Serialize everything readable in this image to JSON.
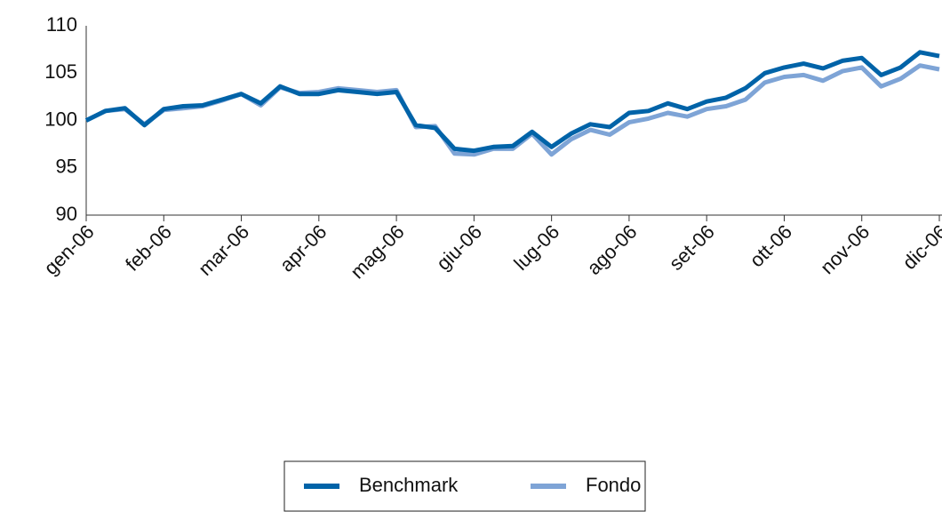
{
  "chart_data": {
    "type": "line",
    "categories": [
      "gen-06",
      null,
      null,
      null,
      "feb-06",
      null,
      null,
      null,
      "mar-06",
      null,
      null,
      null,
      "apr-06",
      null,
      null,
      null,
      "mag-06",
      null,
      null,
      null,
      "giu-06",
      null,
      null,
      null,
      "lug-06",
      null,
      null,
      null,
      "ago-06",
      null,
      null,
      null,
      "set-06",
      null,
      null,
      null,
      "ott-06",
      null,
      null,
      null,
      "nov-06",
      null,
      null,
      null,
      "dic-06"
    ],
    "series": [
      {
        "name": "Benchmark",
        "color": "#0063a8",
        "values": [
          100,
          101,
          101.3,
          99.5,
          101.2,
          101.5,
          101.6,
          102.2,
          102.8,
          101.8,
          103.6,
          102.8,
          102.8,
          103.2,
          103,
          102.8,
          103,
          99.5,
          99.2,
          97,
          96.8,
          97.2,
          97.3,
          98.8,
          97.2,
          98.6,
          99.6,
          99.3,
          100.8,
          101,
          101.8,
          101.2,
          102,
          102.4,
          103.4,
          105,
          105.6,
          106,
          105.5,
          106.3,
          106.6,
          104.8,
          105.6,
          107.2,
          106.8
        ]
      },
      {
        "name": "Fondo",
        "color": "#7ea4d6",
        "values": [
          100,
          101,
          101.2,
          99.6,
          101.1,
          101.3,
          101.5,
          102.1,
          102.8,
          101.6,
          103.5,
          102.9,
          103,
          103.4,
          103.2,
          103,
          103.2,
          99.3,
          99.4,
          96.5,
          96.4,
          97,
          97,
          98.6,
          96.4,
          98,
          99,
          98.5,
          99.8,
          100.2,
          100.8,
          100.4,
          101.2,
          101.5,
          102.2,
          104,
          104.6,
          104.8,
          104.2,
          105.2,
          105.6,
          103.6,
          104.4,
          105.8,
          105.4
        ]
      }
    ],
    "ylim": [
      90,
      110
    ],
    "yticks": [
      90,
      95,
      100,
      105,
      110
    ],
    "grid": false
  }
}
